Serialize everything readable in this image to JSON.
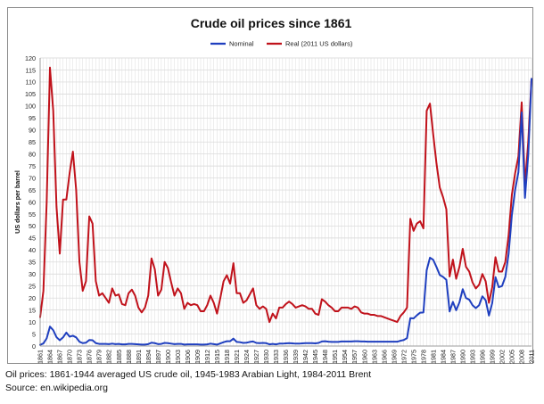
{
  "caption": {
    "line1": "Oil prices: 1861-1944 averaged US crude oil, 1945-1983 Arabian Light, 1984-2011 Brent",
    "line2": "Source: en.wikipedia.org"
  },
  "chart_data": {
    "type": "line",
    "title": "Crude oil prices since 1861",
    "xlabel": "",
    "ylabel": "US dollars per barrel",
    "xlim": [
      1861,
      2011
    ],
    "ylim": [
      0,
      120
    ],
    "y_ticks": [
      0,
      5,
      10,
      15,
      20,
      25,
      30,
      35,
      40,
      45,
      50,
      55,
      60,
      65,
      70,
      75,
      80,
      85,
      90,
      95,
      100,
      105,
      110,
      115,
      120
    ],
    "x_ticks": [
      1861,
      1864,
      1867,
      1870,
      1873,
      1876,
      1879,
      1882,
      1885,
      1888,
      1891,
      1894,
      1897,
      1900,
      1903,
      1906,
      1909,
      1912,
      1915,
      1918,
      1921,
      1924,
      1927,
      1930,
      1933,
      1936,
      1939,
      1942,
      1945,
      1948,
      1951,
      1954,
      1957,
      1960,
      1963,
      1966,
      1969,
      1972,
      1975,
      1978,
      1981,
      1984,
      1987,
      1990,
      1993,
      1996,
      1999,
      2002,
      2005,
      2008,
      2011
    ],
    "grid": true,
    "legend_position": "top-center",
    "series": [
      {
        "name": "Nominal",
        "color": "#1f3fbf",
        "points": [
          [
            1861,
            0.5
          ],
          [
            1862,
            1.1
          ],
          [
            1863,
            3.2
          ],
          [
            1864,
            8.1
          ],
          [
            1865,
            6.6
          ],
          [
            1866,
            3.7
          ],
          [
            1867,
            2.4
          ],
          [
            1868,
            3.6
          ],
          [
            1869,
            5.6
          ],
          [
            1870,
            3.9
          ],
          [
            1871,
            4.3
          ],
          [
            1872,
            3.6
          ],
          [
            1873,
            1.8
          ],
          [
            1874,
            1.2
          ],
          [
            1875,
            1.4
          ],
          [
            1876,
            2.5
          ],
          [
            1877,
            2.4
          ],
          [
            1878,
            1.2
          ],
          [
            1879,
            0.9
          ],
          [
            1880,
            0.9
          ],
          [
            1881,
            0.9
          ],
          [
            1882,
            0.8
          ],
          [
            1883,
            1.0
          ],
          [
            1884,
            0.8
          ],
          [
            1885,
            0.9
          ],
          [
            1886,
            0.7
          ],
          [
            1887,
            0.7
          ],
          [
            1888,
            0.9
          ],
          [
            1889,
            0.9
          ],
          [
            1890,
            0.8
          ],
          [
            1891,
            0.7
          ],
          [
            1892,
            0.6
          ],
          [
            1893,
            0.6
          ],
          [
            1894,
            0.8
          ],
          [
            1895,
            1.4
          ],
          [
            1896,
            1.2
          ],
          [
            1897,
            0.8
          ],
          [
            1898,
            0.9
          ],
          [
            1899,
            1.3
          ],
          [
            1900,
            1.2
          ],
          [
            1901,
            1.0
          ],
          [
            1902,
            0.8
          ],
          [
            1903,
            0.9
          ],
          [
            1904,
            0.9
          ],
          [
            1905,
            0.6
          ],
          [
            1906,
            0.7
          ],
          [
            1907,
            0.7
          ],
          [
            1908,
            0.7
          ],
          [
            1909,
            0.7
          ],
          [
            1910,
            0.6
          ],
          [
            1911,
            0.6
          ],
          [
            1912,
            0.7
          ],
          [
            1913,
            1.0
          ],
          [
            1914,
            0.8
          ],
          [
            1915,
            0.6
          ],
          [
            1916,
            1.1
          ],
          [
            1917,
            1.6
          ],
          [
            1918,
            2.0
          ],
          [
            1919,
            2.0
          ],
          [
            1920,
            3.1
          ],
          [
            1921,
            1.7
          ],
          [
            1922,
            1.6
          ],
          [
            1923,
            1.3
          ],
          [
            1924,
            1.4
          ],
          [
            1925,
            1.7
          ],
          [
            1926,
            1.9
          ],
          [
            1927,
            1.3
          ],
          [
            1928,
            1.2
          ],
          [
            1929,
            1.3
          ],
          [
            1930,
            1.2
          ],
          [
            1931,
            0.7
          ],
          [
            1932,
            0.9
          ],
          [
            1933,
            0.7
          ],
          [
            1934,
            1.0
          ],
          [
            1935,
            1.0
          ],
          [
            1936,
            1.1
          ],
          [
            1937,
            1.2
          ],
          [
            1938,
            1.1
          ],
          [
            1939,
            1.0
          ],
          [
            1940,
            1.0
          ],
          [
            1941,
            1.1
          ],
          [
            1942,
            1.2
          ],
          [
            1943,
            1.2
          ],
          [
            1944,
            1.2
          ],
          [
            1945,
            1.1
          ],
          [
            1946,
            1.3
          ],
          [
            1947,
            1.9
          ],
          [
            1948,
            2.0
          ],
          [
            1949,
            1.8
          ],
          [
            1950,
            1.7
          ],
          [
            1951,
            1.7
          ],
          [
            1952,
            1.7
          ],
          [
            1953,
            1.9
          ],
          [
            1954,
            1.9
          ],
          [
            1955,
            1.9
          ],
          [
            1956,
            1.9
          ],
          [
            1957,
            2.0
          ],
          [
            1958,
            2.0
          ],
          [
            1959,
            1.9
          ],
          [
            1960,
            1.9
          ],
          [
            1961,
            1.8
          ],
          [
            1962,
            1.8
          ],
          [
            1963,
            1.8
          ],
          [
            1964,
            1.8
          ],
          [
            1965,
            1.8
          ],
          [
            1966,
            1.8
          ],
          [
            1967,
            1.8
          ],
          [
            1968,
            1.8
          ],
          [
            1969,
            1.8
          ],
          [
            1970,
            1.8
          ],
          [
            1971,
            2.2
          ],
          [
            1972,
            2.5
          ],
          [
            1973,
            3.3
          ],
          [
            1974,
            11.6
          ],
          [
            1975,
            11.5
          ],
          [
            1976,
            12.8
          ],
          [
            1977,
            13.9
          ],
          [
            1978,
            14.0
          ],
          [
            1979,
            31.6
          ],
          [
            1980,
            36.8
          ],
          [
            1981,
            35.9
          ],
          [
            1982,
            32.9
          ],
          [
            1983,
            29.6
          ],
          [
            1984,
            28.8
          ],
          [
            1985,
            27.6
          ],
          [
            1986,
            14.4
          ],
          [
            1987,
            18.4
          ],
          [
            1988,
            14.9
          ],
          [
            1989,
            18.2
          ],
          [
            1990,
            23.7
          ],
          [
            1991,
            20.0
          ],
          [
            1992,
            19.3
          ],
          [
            1993,
            17.0
          ],
          [
            1994,
            15.8
          ],
          [
            1995,
            17.0
          ],
          [
            1996,
            20.7
          ],
          [
            1997,
            19.1
          ],
          [
            1998,
            12.7
          ],
          [
            1999,
            17.9
          ],
          [
            2000,
            28.7
          ],
          [
            2001,
            24.5
          ],
          [
            2002,
            25.0
          ],
          [
            2003,
            28.8
          ],
          [
            2004,
            38.3
          ],
          [
            2005,
            54.5
          ],
          [
            2006,
            65.1
          ],
          [
            2007,
            72.4
          ],
          [
            2008,
            97.3
          ],
          [
            2009,
            61.7
          ],
          [
            2010,
            79.5
          ],
          [
            2011,
            111.3
          ]
        ]
      },
      {
        "name": "Real (2011 US dollars)",
        "color": "#c0121b",
        "points": [
          [
            1861,
            12.0
          ],
          [
            1862,
            23.0
          ],
          [
            1863,
            60.0
          ],
          [
            1864,
            116.0
          ],
          [
            1865,
            98.0
          ],
          [
            1866,
            58.0
          ],
          [
            1867,
            38.5
          ],
          [
            1868,
            61.0
          ],
          [
            1869,
            61.0
          ],
          [
            1870,
            72.0
          ],
          [
            1871,
            81.0
          ],
          [
            1872,
            65.0
          ],
          [
            1873,
            35.0
          ],
          [
            1874,
            23.0
          ],
          [
            1875,
            27.0
          ],
          [
            1876,
            54.0
          ],
          [
            1877,
            51.0
          ],
          [
            1878,
            27.0
          ],
          [
            1879,
            21.0
          ],
          [
            1880,
            22.0
          ],
          [
            1881,
            20.0
          ],
          [
            1882,
            18.0
          ],
          [
            1883,
            24.0
          ],
          [
            1884,
            21.0
          ],
          [
            1885,
            21.5
          ],
          [
            1886,
            17.5
          ],
          [
            1887,
            17.0
          ],
          [
            1888,
            22.0
          ],
          [
            1889,
            23.5
          ],
          [
            1890,
            21.0
          ],
          [
            1891,
            16.0
          ],
          [
            1892,
            14.0
          ],
          [
            1893,
            16.0
          ],
          [
            1894,
            21.0
          ],
          [
            1895,
            36.5
          ],
          [
            1896,
            32.0
          ],
          [
            1897,
            21.0
          ],
          [
            1898,
            23.5
          ],
          [
            1899,
            35.0
          ],
          [
            1900,
            32.5
          ],
          [
            1901,
            26.5
          ],
          [
            1902,
            21.0
          ],
          [
            1903,
            24.0
          ],
          [
            1904,
            22.0
          ],
          [
            1905,
            15.5
          ],
          [
            1906,
            18.0
          ],
          [
            1907,
            17.0
          ],
          [
            1908,
            17.5
          ],
          [
            1909,
            17.0
          ],
          [
            1910,
            14.5
          ],
          [
            1911,
            14.5
          ],
          [
            1912,
            17.0
          ],
          [
            1913,
            21.0
          ],
          [
            1914,
            18.0
          ],
          [
            1915,
            13.5
          ],
          [
            1916,
            20.0
          ],
          [
            1917,
            27.0
          ],
          [
            1918,
            29.5
          ],
          [
            1919,
            26.0
          ],
          [
            1920,
            34.5
          ],
          [
            1921,
            22.0
          ],
          [
            1922,
            22.0
          ],
          [
            1923,
            18.0
          ],
          [
            1924,
            19.0
          ],
          [
            1925,
            21.5
          ],
          [
            1926,
            24.0
          ],
          [
            1927,
            17.0
          ],
          [
            1928,
            15.5
          ],
          [
            1929,
            16.5
          ],
          [
            1930,
            15.5
          ],
          [
            1931,
            10.0
          ],
          [
            1932,
            13.5
          ],
          [
            1933,
            11.5
          ],
          [
            1934,
            16.0
          ],
          [
            1935,
            16.0
          ],
          [
            1936,
            17.5
          ],
          [
            1937,
            18.5
          ],
          [
            1938,
            17.5
          ],
          [
            1939,
            16.0
          ],
          [
            1940,
            16.5
          ],
          [
            1941,
            17.0
          ],
          [
            1942,
            16.5
          ],
          [
            1943,
            15.5
          ],
          [
            1944,
            15.5
          ],
          [
            1945,
            13.5
          ],
          [
            1946,
            13.0
          ],
          [
            1947,
            19.5
          ],
          [
            1948,
            18.5
          ],
          [
            1949,
            17.0
          ],
          [
            1950,
            16.0
          ],
          [
            1951,
            14.5
          ],
          [
            1952,
            14.5
          ],
          [
            1953,
            16.0
          ],
          [
            1954,
            16.0
          ],
          [
            1955,
            16.0
          ],
          [
            1956,
            15.5
          ],
          [
            1957,
            16.5
          ],
          [
            1958,
            16.0
          ],
          [
            1959,
            14.0
          ],
          [
            1960,
            13.5
          ],
          [
            1961,
            13.5
          ],
          [
            1962,
            13.0
          ],
          [
            1963,
            13.0
          ],
          [
            1964,
            12.5
          ],
          [
            1965,
            12.5
          ],
          [
            1966,
            12.0
          ],
          [
            1967,
            11.5
          ],
          [
            1968,
            11.0
          ],
          [
            1969,
            10.5
          ],
          [
            1970,
            10.0
          ],
          [
            1971,
            12.5
          ],
          [
            1972,
            14.0
          ],
          [
            1973,
            16.0
          ],
          [
            1974,
            53.0
          ],
          [
            1975,
            48.0
          ],
          [
            1976,
            51.0
          ],
          [
            1977,
            52.0
          ],
          [
            1978,
            49.0
          ],
          [
            1979,
            98.0
          ],
          [
            1980,
            101.0
          ],
          [
            1981,
            88.0
          ],
          [
            1982,
            76.0
          ],
          [
            1983,
            66.0
          ],
          [
            1984,
            62.0
          ],
          [
            1985,
            57.0
          ],
          [
            1986,
            29.0
          ],
          [
            1987,
            36.0
          ],
          [
            1988,
            28.0
          ],
          [
            1989,
            33.0
          ],
          [
            1990,
            40.5
          ],
          [
            1991,
            33.0
          ],
          [
            1992,
            31.0
          ],
          [
            1993,
            26.5
          ],
          [
            1994,
            24.0
          ],
          [
            1995,
            25.5
          ],
          [
            1996,
            30.0
          ],
          [
            1997,
            27.0
          ],
          [
            1998,
            18.0
          ],
          [
            1999,
            24.5
          ],
          [
            2000,
            37.0
          ],
          [
            2001,
            31.0
          ],
          [
            2002,
            31.0
          ],
          [
            2003,
            35.0
          ],
          [
            2004,
            46.0
          ],
          [
            2005,
            63.0
          ],
          [
            2006,
            72.0
          ],
          [
            2007,
            79.0
          ],
          [
            2008,
            101.5
          ],
          [
            2009,
            67.0
          ],
          [
            2010,
            85.0
          ],
          [
            2011,
            111.3
          ]
        ]
      }
    ]
  }
}
